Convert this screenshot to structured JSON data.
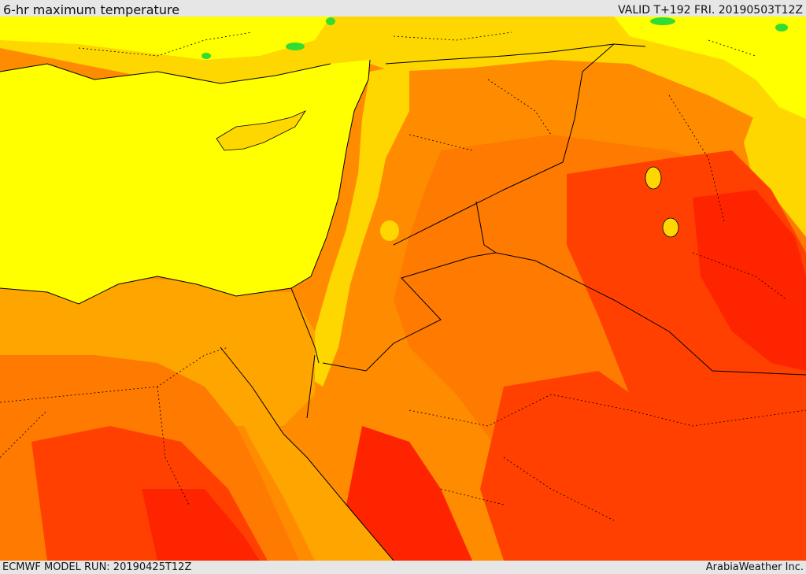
{
  "header": {
    "title": "6-hr maximum temperature",
    "valid": "VALID T+192 FRI. 20190503T12Z"
  },
  "footer": {
    "model_run": "ECMWF MODEL RUN: 20190425T12Z",
    "credit": "ArabiaWeather Inc."
  },
  "palette": {
    "band_cool": "#32dc32",
    "band_mild": "#ffff00",
    "band_warm": "#ffd700",
    "band_hot": "#ffa500",
    "band_hotter": "#ff7a00",
    "band_very_hot": "#ff4000",
    "band_extreme": "#ff2400",
    "borders": "#000000"
  }
}
